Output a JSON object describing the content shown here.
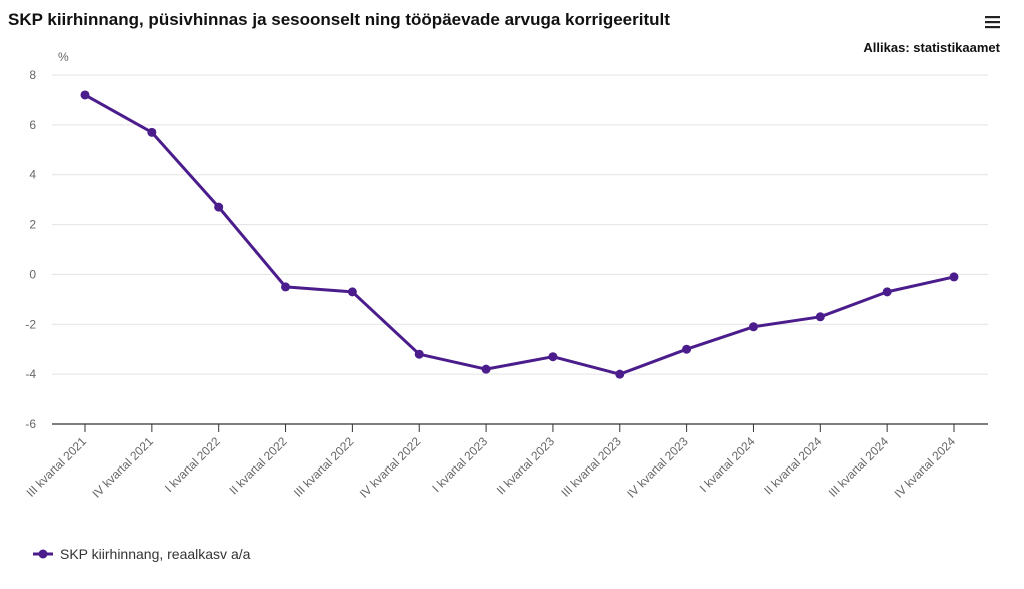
{
  "header": {
    "title": "SKP kiirhinnang, püsivhinnas ja sesoonselt ning tööpäevade arvuga korrigeeritult",
    "source": "Allikas: statistikaamet",
    "menu_icon": "hamburger-menu-icon"
  },
  "chart_data": {
    "type": "line",
    "title": "SKP kiirhinnang, püsivhinnas ja sesoonselt ning tööpäevade arvuga korrigeeritult",
    "ylabel": "%",
    "xlabel": "",
    "ylim": [
      -6,
      8
    ],
    "yticks": [
      8,
      6,
      4,
      2,
      0,
      -2,
      -4,
      -6
    ],
    "grid": true,
    "legend_placement": "bottom-left",
    "categories": [
      "III kvartal 2021",
      "IV kvartal 2021",
      "I kvartal 2022",
      "II kvartal 2022",
      "III kvartal 2022",
      "IV kvartal 2022",
      "I kvartal 2023",
      "II kvartal 2023",
      "III kvartal 2023",
      "IV kvartal 2023",
      "I kvartal 2024",
      "II kvartal 2024",
      "III kvartal 2024",
      "IV kvartal 2024"
    ],
    "series": [
      {
        "name": "SKP kiirhinnang, reaalkasv a/a",
        "color": "#4b1c8c",
        "values": [
          7.2,
          5.7,
          2.7,
          -0.5,
          -0.7,
          -3.2,
          -3.8,
          -3.3,
          -4.0,
          -3.0,
          -2.1,
          -1.7,
          -0.7,
          -0.1
        ]
      }
    ]
  }
}
